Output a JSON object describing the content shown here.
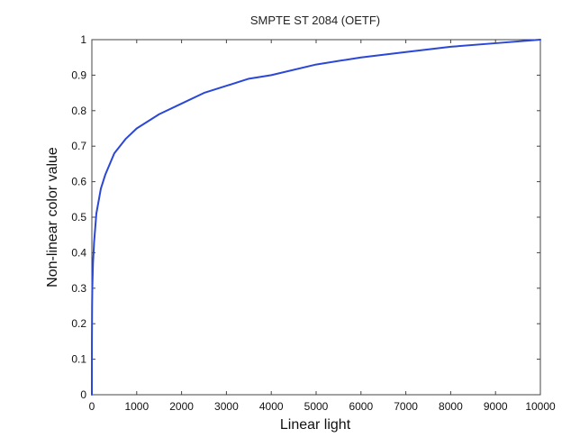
{
  "chart_data": {
    "type": "line",
    "title": "SMPTE ST 2084 (OETF)",
    "xlabel": "Linear light",
    "ylabel": "Non-linear color value",
    "xlim": [
      0,
      10000
    ],
    "ylim": [
      0,
      1
    ],
    "x_ticks": [
      0,
      1000,
      2000,
      3000,
      4000,
      5000,
      6000,
      7000,
      8000,
      9000,
      10000
    ],
    "y_ticks": [
      0,
      0.1,
      0.2,
      0.3,
      0.4,
      0.5,
      0.6,
      0.7,
      0.8,
      0.9,
      1
    ],
    "x_tick_labels": [
      "0",
      "1000",
      "2000",
      "3000",
      "4000",
      "5000",
      "6000",
      "7000",
      "8000",
      "9000",
      "10000"
    ],
    "y_tick_labels": [
      "0",
      "0.1",
      "0.2",
      "0.3",
      "0.4",
      "0.5",
      "0.6",
      "0.7",
      "0.8",
      "0.9",
      "1"
    ],
    "grid": false,
    "line_color": "#2b47d6",
    "series": [
      {
        "x": [
          0,
          1,
          5,
          10,
          25,
          50,
          100,
          200,
          300,
          500,
          750,
          1000,
          1500,
          2000,
          2500,
          3000,
          3500,
          4000,
          5000,
          6000,
          7000,
          8000,
          9000,
          10000
        ],
        "values": [
          0,
          0.15,
          0.25,
          0.3,
          0.37,
          0.43,
          0.51,
          0.58,
          0.62,
          0.68,
          0.72,
          0.75,
          0.79,
          0.82,
          0.85,
          0.87,
          0.89,
          0.9,
          0.93,
          0.95,
          0.965,
          0.98,
          0.99,
          1.0
        ]
      }
    ]
  }
}
